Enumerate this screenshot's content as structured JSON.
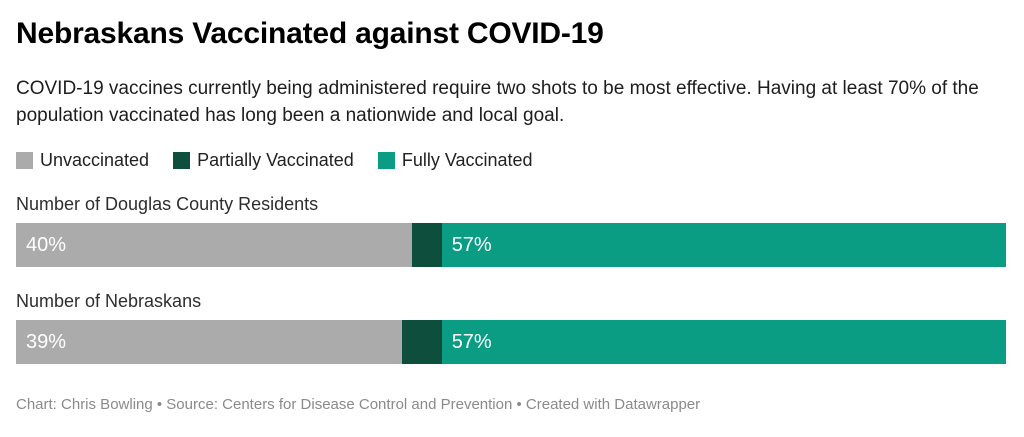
{
  "header": {
    "title": "Nebraskans Vaccinated against COVID-19",
    "subtitle": "COVID-19 vaccines currently being administered require two shots to be most effective. Having at least 70% of the population vaccinated has long been a nationwide and local goal."
  },
  "legend": [
    {
      "label": "Unvaccinated",
      "color": "#ababab"
    },
    {
      "label": "Partially Vaccinated",
      "color": "#0d4f3c"
    },
    {
      "label": "Fully Vaccinated",
      "color": "#0a9d84"
    }
  ],
  "chart_data": {
    "type": "bar",
    "orientation": "horizontal-stacked",
    "unit": "percent",
    "title": "Nebraskans Vaccinated against COVID-19",
    "categories": [
      "Number of Douglas County Residents",
      "Number of Nebraskans"
    ],
    "series": [
      {
        "name": "Unvaccinated",
        "color": "#ababab",
        "values": [
          40,
          39
        ]
      },
      {
        "name": "Partially Vaccinated",
        "color": "#0d4f3c",
        "values": [
          3,
          4
        ]
      },
      {
        "name": "Fully Vaccinated",
        "color": "#0a9d84",
        "values": [
          57,
          57
        ]
      }
    ],
    "bar_labels": [
      [
        "40%",
        "",
        "57%"
      ],
      [
        "39%",
        "",
        "57%"
      ]
    ],
    "xlim": [
      0,
      100
    ],
    "legend_position": "top",
    "grid": false,
    "text_colors": {
      "segment_label": "#ffffff"
    }
  },
  "footer": {
    "text": "Chart: Chris Bowling • Source: Centers for Disease Control and Prevention • Created with Datawrapper"
  }
}
